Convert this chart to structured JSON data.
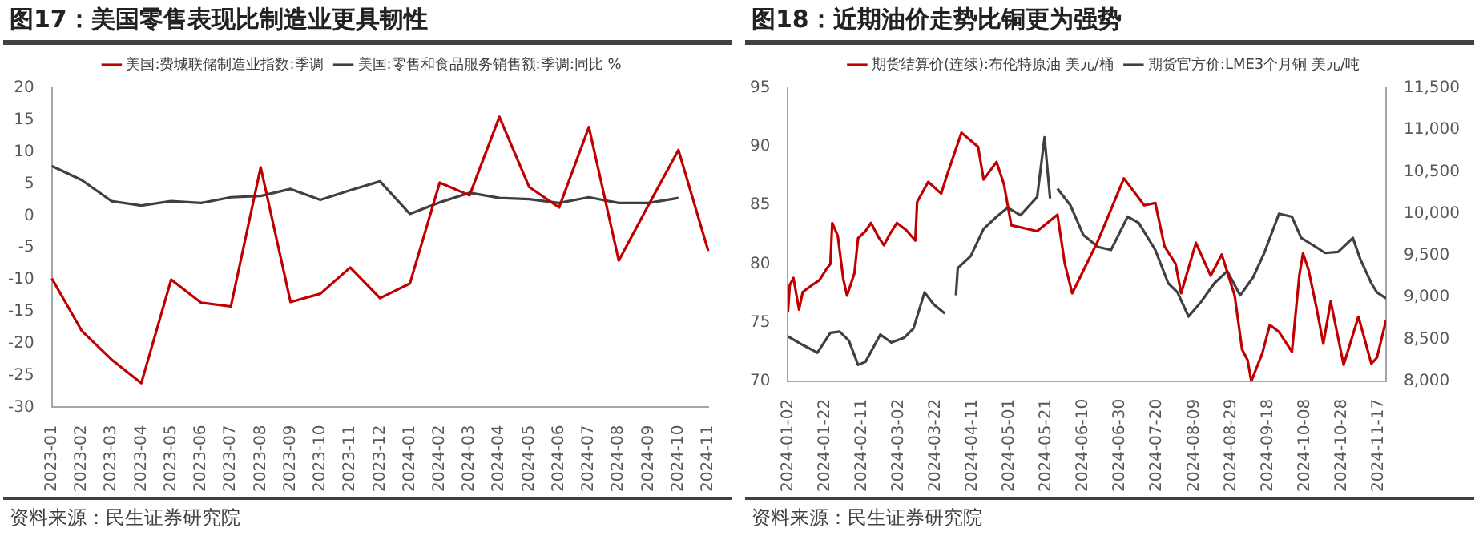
{
  "chart_data": [
    {
      "type": "line",
      "title": "图17：美国零售表现比制造业更具韧性",
      "categories": [
        "2023-01",
        "2023-02",
        "2023-03",
        "2023-04",
        "2023-05",
        "2023-06",
        "2023-07",
        "2023-08",
        "2023-09",
        "2023-10",
        "2023-11",
        "2023-12",
        "2024-01",
        "2024-02",
        "2024-03",
        "2024-04",
        "2024-05",
        "2024-06",
        "2024-07",
        "2024-08",
        "2024-09",
        "2024-10",
        "2024-11"
      ],
      "series": [
        {
          "name": "美国:费城联储制造业指数:季调",
          "color": "#c00000",
          "values": [
            -9.8,
            -18,
            -22.5,
            -26.2,
            -10,
            -13.6,
            -14.2,
            7.6,
            -13.5,
            -12.2,
            -8.1,
            -12.9,
            -10.6,
            5.2,
            3.2,
            15.5,
            4.5,
            1.3,
            13.9,
            -7,
            1.7,
            10.3,
            -5.5
          ]
        },
        {
          "name": "美国:零售和食品服务销售额:季调:同比 %",
          "color": "#404040",
          "values": [
            7.8,
            5.6,
            2.3,
            1.6,
            2.3,
            2.0,
            2.9,
            3.1,
            4.2,
            2.5,
            4.0,
            5.4,
            0.3,
            2.1,
            3.6,
            2.8,
            2.6,
            2.0,
            2.9,
            2.0,
            2.0,
            2.8,
            null
          ]
        }
      ],
      "ylim": [
        -30,
        20
      ],
      "yticks": [
        -30,
        -25,
        -20,
        -15,
        -10,
        -5,
        0,
        5,
        10,
        15,
        20
      ],
      "legend": "top",
      "marker": "none",
      "annotations": [
        "资料来源：民生证券研究院"
      ]
    },
    {
      "type": "line",
      "title": "图18：近期油价走势比铜更为强势",
      "series": [
        {
          "name": "期货结算价(连续):布伦特原油 美元/桶",
          "color": "#c00000",
          "x": [
            "2024-01-02",
            "2024-01-03",
            "2024-01-05",
            "2024-01-08",
            "2024-01-10",
            "2024-01-16",
            "2024-01-19",
            "2024-01-23",
            "2024-01-25",
            "2024-01-26",
            "2024-01-29",
            "2024-02-01",
            "2024-02-03",
            "2024-02-07",
            "2024-02-09",
            "2024-02-13",
            "2024-02-16",
            "2024-02-20",
            "2024-02-23",
            "2024-02-26",
            "2024-03-01",
            "2024-03-06",
            "2024-03-11",
            "2024-03-12",
            "2024-03-18",
            "2024-03-25",
            "2024-03-28",
            "2024-04-05",
            "2024-04-14",
            "2024-04-17",
            "2024-04-24",
            "2024-04-28",
            "2024-05-02",
            "2024-05-16",
            "2024-05-27",
            "2024-05-31",
            "2024-06-04",
            "2024-06-18",
            "2024-07-02",
            "2024-07-13",
            "2024-07-19",
            "2024-07-24",
            "2024-07-30",
            "2024-08-02",
            "2024-08-10",
            "2024-08-18",
            "2024-08-24",
            "2024-08-31",
            "2024-09-04",
            "2024-09-07",
            "2024-09-09",
            "2024-09-15",
            "2024-09-19",
            "2024-09-24",
            "2024-10-01",
            "2024-10-05",
            "2024-10-07",
            "2024-10-10",
            "2024-10-14",
            "2024-10-18",
            "2024-10-22",
            "2024-10-29",
            "2024-11-06",
            "2024-11-13",
            "2024-11-16",
            "2024-11-21"
          ],
          "values": [
            75.9,
            78.2,
            78.8,
            76.1,
            77.6,
            78.3,
            78.6,
            79.6,
            80,
            83.5,
            82.4,
            78.7,
            77.3,
            79.2,
            82.2,
            82.8,
            83.5,
            82.3,
            81.6,
            82.5,
            83.5,
            82.9,
            82,
            85.3,
            87,
            86,
            87.5,
            91.2,
            90,
            87.2,
            88.7,
            86.8,
            83.3,
            82.8,
            84.2,
            80,
            77.5,
            82,
            87.3,
            85,
            85.2,
            81.5,
            80,
            77.5,
            81.8,
            79,
            80.8,
            77.3,
            72.7,
            71.8,
            70,
            72.4,
            74.8,
            74.2,
            72.5,
            79,
            80.9,
            79.5,
            76.5,
            73.2,
            76.8,
            71.4,
            75.5,
            71.5,
            72,
            75.2
          ]
        },
        {
          "name": "期货官方价:LME3个月铜 美元/吨",
          "color": "#404040",
          "axis": "y2",
          "x": [
            "2024-01-02",
            "2024-01-10",
            "2024-01-18",
            "2024-01-25",
            "2024-01-30",
            "2024-02-04",
            "2024-02-09",
            "2024-02-13",
            "2024-02-21",
            "2024-02-27",
            "2024-03-05",
            "2024-03-10",
            "2024-03-16",
            "2024-03-21",
            "2024-03-27",
            "2024-03-30",
            "2024-04-02",
            "2024-04-03",
            "2024-04-10",
            "2024-04-17",
            "2024-04-24",
            "2024-04-30",
            "2024-05-07",
            "2024-05-16",
            "2024-05-20",
            "2024-05-23",
            "2024-05-25",
            "2024-05-27",
            "2024-06-03",
            "2024-06-10",
            "2024-06-18",
            "2024-06-25",
            "2024-07-04",
            "2024-07-10",
            "2024-07-19",
            "2024-07-26",
            "2024-07-31",
            "2024-08-06",
            "2024-08-13",
            "2024-08-20",
            "2024-08-27",
            "2024-09-03",
            "2024-09-10",
            "2024-09-16",
            "2024-09-24",
            "2024-10-01",
            "2024-10-06",
            "2024-10-14",
            "2024-10-19",
            "2024-10-26",
            "2024-11-03",
            "2024-11-07",
            "2024-11-13",
            "2024-11-16",
            "2024-11-21"
          ],
          "values": [
            8534,
            8433,
            8340,
            8578,
            8592,
            8484,
            8195,
            8231,
            8556,
            8462,
            8520,
            8628,
            9061,
            8917,
            8809,
            null,
            9025,
            9350,
            9494,
            9819,
            9964,
            10072,
            9982,
            10200,
            10912,
            10183,
            null,
            10300,
            10100,
            9747,
            9603,
            9567,
            9964,
            9892,
            9567,
            9170,
            9061,
            8773,
            8953,
            9170,
            9314,
            9025,
            9242,
            9531,
            10000,
            9964,
            9711,
            9603,
            9531,
            9545,
            9711,
            9458,
            9170,
            9061,
            8989
          ]
        }
      ],
      "xlim": [
        "2024-01-02",
        "2024-11-21"
      ],
      "xticks": [
        "2024-01-02",
        "2024-01-22",
        "2024-02-11",
        "2024-03-02",
        "2024-03-22",
        "2024-04-11",
        "2024-05-01",
        "2024-05-21",
        "2024-06-10",
        "2024-06-30",
        "2024-07-20",
        "2024-08-09",
        "2024-08-29",
        "2024-09-18",
        "2024-10-08",
        "2024-10-28",
        "2024-11-17"
      ],
      "ylim": [
        70,
        95
      ],
      "yticks": [
        70,
        75,
        80,
        85,
        90,
        95
      ],
      "y2lim": [
        8000,
        11500
      ],
      "y2ticks": [
        {
          "value": 8000,
          "label": "8,000"
        },
        {
          "value": 8500,
          "label": "8,500"
        },
        {
          "value": 9000,
          "label": "9,000"
        },
        {
          "value": 9500,
          "label": "9,500"
        },
        {
          "value": 10000,
          "label": "10,000"
        },
        {
          "value": 10500,
          "label": "10,500"
        },
        {
          "value": 11000,
          "label": "11,000"
        },
        {
          "value": 11500,
          "label": "11,500"
        }
      ],
      "legend": "top",
      "marker": "none",
      "annotations": [
        "资料来源：民生证券研究院"
      ]
    }
  ]
}
